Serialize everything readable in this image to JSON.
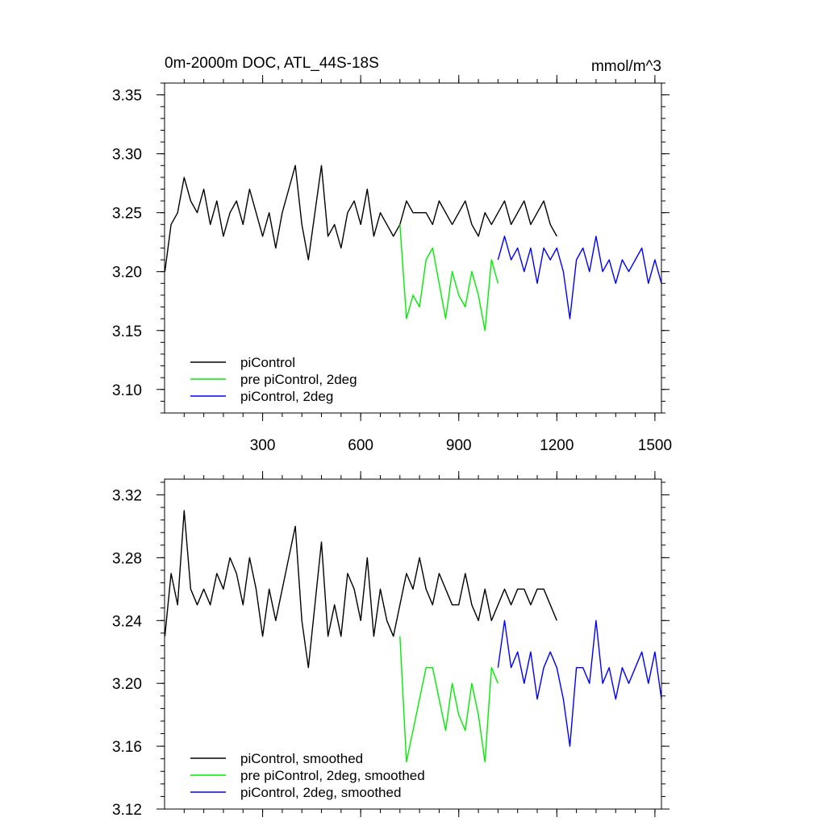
{
  "colors": {
    "piControl": "#000000",
    "pre_piControl_2deg": "#00ee00",
    "piControl_2deg": "#0000ff"
  },
  "chart_data": [
    {
      "type": "line",
      "title": "0m-2000m DOC, ATL_44S-18S",
      "units": "mmol/m^3",
      "xlim": [
        0,
        1520
      ],
      "ylim": [
        3.08,
        3.36
      ],
      "xticks": [
        300,
        600,
        900,
        1200,
        1500
      ],
      "xtick_labels": [
        "300",
        "600",
        "900",
        "1200",
        "1500"
      ],
      "yticks": [
        3.35,
        3.3,
        3.25,
        3.2,
        3.15,
        3.1
      ],
      "ytick_labels": [
        "3.35",
        "3.30",
        "3.25",
        "3.20",
        "3.15",
        "3.10"
      ],
      "legend": [
        "piControl",
        "pre piControl, 2deg",
        "piControl, 2deg"
      ],
      "legend_position": "bottom-left",
      "series": [
        {
          "name": "piControl",
          "color": "#000000",
          "x": [
            1,
            20,
            40,
            60,
            80,
            100,
            120,
            140,
            160,
            180,
            200,
            220,
            240,
            260,
            280,
            300,
            320,
            340,
            360,
            380,
            400,
            420,
            440,
            460,
            480,
            500,
            520,
            540,
            560,
            580,
            600,
            620,
            640,
            660,
            680,
            700,
            720,
            740,
            760,
            780,
            800,
            820,
            840,
            860,
            880,
            900,
            920,
            940,
            960,
            980,
            1000,
            1020,
            1040,
            1060,
            1080,
            1100,
            1120,
            1140,
            1160,
            1180,
            1200
          ],
          "values": [
            3.2,
            3.24,
            3.25,
            3.28,
            3.26,
            3.25,
            3.27,
            3.24,
            3.26,
            3.23,
            3.25,
            3.26,
            3.24,
            3.27,
            3.25,
            3.23,
            3.25,
            3.22,
            3.25,
            3.27,
            3.29,
            3.24,
            3.21,
            3.25,
            3.29,
            3.23,
            3.24,
            3.22,
            3.25,
            3.26,
            3.24,
            3.27,
            3.23,
            3.25,
            3.24,
            3.23,
            3.24,
            3.26,
            3.25,
            3.25,
            3.25,
            3.24,
            3.26,
            3.25,
            3.24,
            3.25,
            3.26,
            3.24,
            3.23,
            3.25,
            3.24,
            3.25,
            3.26,
            3.24,
            3.25,
            3.26,
            3.24,
            3.25,
            3.26,
            3.24,
            3.23
          ]
        },
        {
          "name": "pre piControl, 2deg",
          "color": "#00ee00",
          "x": [
            720,
            740,
            760,
            780,
            800,
            820,
            840,
            860,
            880,
            900,
            920,
            940,
            960,
            980,
            1000,
            1020
          ],
          "values": [
            3.24,
            3.16,
            3.18,
            3.17,
            3.21,
            3.22,
            3.19,
            3.16,
            3.2,
            3.18,
            3.17,
            3.2,
            3.18,
            3.15,
            3.21,
            3.19
          ]
        },
        {
          "name": "piControl, 2deg",
          "color": "#0000ff",
          "x": [
            1020,
            1040,
            1060,
            1080,
            1100,
            1120,
            1140,
            1160,
            1180,
            1200,
            1220,
            1240,
            1260,
            1280,
            1300,
            1320,
            1340,
            1360,
            1380,
            1400,
            1420,
            1440,
            1460,
            1480,
            1500,
            1520
          ],
          "values": [
            3.21,
            3.23,
            3.21,
            3.22,
            3.2,
            3.22,
            3.19,
            3.22,
            3.21,
            3.22,
            3.2,
            3.16,
            3.21,
            3.22,
            3.2,
            3.23,
            3.2,
            3.21,
            3.19,
            3.21,
            3.2,
            3.21,
            3.22,
            3.19,
            3.21,
            3.19
          ]
        }
      ]
    },
    {
      "type": "line",
      "xlim": [
        0,
        1520
      ],
      "ylim": [
        3.12,
        3.33
      ],
      "xticks": [
        300,
        600,
        900,
        1200,
        1500
      ],
      "yticks": [
        3.32,
        3.28,
        3.24,
        3.2,
        3.16,
        3.12
      ],
      "ytick_labels": [
        "3.32",
        "3.28",
        "3.24",
        "3.20",
        "3.16",
        "3.12"
      ],
      "legend": [
        "piControl, smoothed",
        "pre piControl, 2deg, smoothed",
        "piControl, 2deg, smoothed"
      ],
      "legend_position": "bottom-left",
      "series": [
        {
          "name": "piControl, smoothed",
          "color": "#000000",
          "x": [
            1,
            20,
            40,
            60,
            80,
            100,
            120,
            140,
            160,
            180,
            200,
            220,
            240,
            260,
            280,
            300,
            320,
            340,
            360,
            380,
            400,
            420,
            440,
            460,
            480,
            500,
            520,
            540,
            560,
            580,
            600,
            620,
            640,
            660,
            680,
            700,
            720,
            740,
            760,
            780,
            800,
            820,
            840,
            860,
            880,
            900,
            920,
            940,
            960,
            980,
            1000,
            1020,
            1040,
            1060,
            1080,
            1100,
            1120,
            1140,
            1160,
            1180,
            1200
          ],
          "values": [
            3.23,
            3.27,
            3.25,
            3.31,
            3.26,
            3.25,
            3.26,
            3.25,
            3.27,
            3.26,
            3.28,
            3.27,
            3.25,
            3.28,
            3.26,
            3.23,
            3.26,
            3.24,
            3.26,
            3.28,
            3.3,
            3.24,
            3.21,
            3.25,
            3.29,
            3.23,
            3.25,
            3.23,
            3.27,
            3.26,
            3.24,
            3.28,
            3.23,
            3.26,
            3.24,
            3.23,
            3.25,
            3.27,
            3.26,
            3.28,
            3.26,
            3.25,
            3.27,
            3.26,
            3.25,
            3.25,
            3.27,
            3.25,
            3.24,
            3.26,
            3.24,
            3.25,
            3.26,
            3.25,
            3.26,
            3.26,
            3.25,
            3.26,
            3.26,
            3.25,
            3.24
          ]
        },
        {
          "name": "pre piControl, 2deg, smoothed",
          "color": "#00ee00",
          "x": [
            720,
            740,
            760,
            780,
            800,
            820,
            840,
            860,
            880,
            900,
            920,
            940,
            960,
            980,
            1000,
            1020
          ],
          "values": [
            3.23,
            3.15,
            3.17,
            3.19,
            3.21,
            3.21,
            3.19,
            3.17,
            3.2,
            3.18,
            3.17,
            3.2,
            3.18,
            3.15,
            3.21,
            3.2
          ]
        },
        {
          "name": "piControl, 2deg, smoothed",
          "color": "#0000ff",
          "x": [
            1020,
            1040,
            1060,
            1080,
            1100,
            1120,
            1140,
            1160,
            1180,
            1200,
            1220,
            1240,
            1260,
            1280,
            1300,
            1320,
            1340,
            1360,
            1380,
            1400,
            1420,
            1440,
            1460,
            1480,
            1500,
            1520
          ],
          "values": [
            3.21,
            3.24,
            3.21,
            3.22,
            3.2,
            3.22,
            3.19,
            3.21,
            3.22,
            3.21,
            3.19,
            3.16,
            3.21,
            3.21,
            3.2,
            3.24,
            3.2,
            3.21,
            3.19,
            3.21,
            3.2,
            3.21,
            3.22,
            3.2,
            3.22,
            3.19
          ]
        }
      ]
    }
  ]
}
